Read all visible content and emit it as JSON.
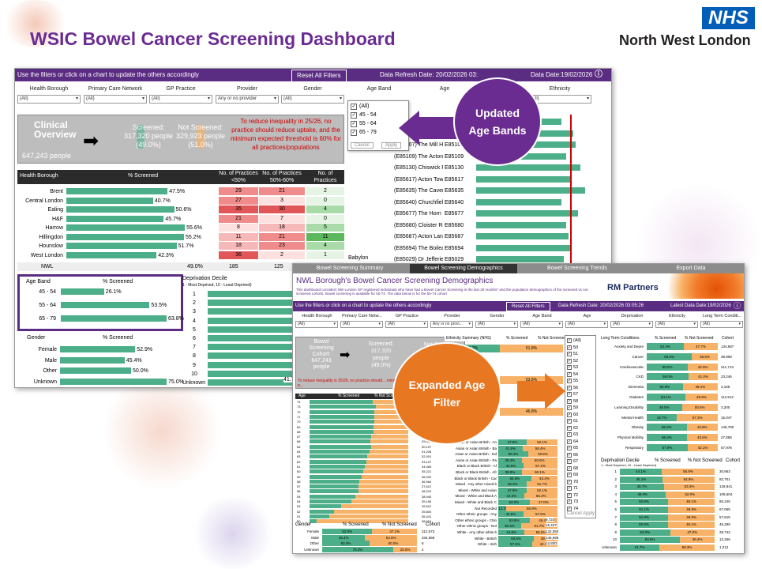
{
  "page": {
    "title": "WSIC Bowel Cancer Screening Dashboard",
    "logo": "NHS",
    "org": "North West London"
  },
  "overview": {
    "instruction": "Use the filters or click on a chart to update the others accordingly",
    "reset": "Reset All Filters",
    "refresh": "Data Refresh Date: 20/02/2026 03:",
    "latest": "Data Date:19/02/2026",
    "filters": [
      {
        "label": "Health Borough",
        "value": "(All)"
      },
      {
        "label": "Primary Care Network",
        "value": "(All)"
      },
      {
        "label": "GP Practice",
        "value": "(All)"
      },
      {
        "label": "Provider",
        "value": "Any or no provider"
      },
      {
        "label": "Gender",
        "value": "(All)"
      },
      {
        "label": "Age Band",
        "value": "(All)"
      },
      {
        "label": "Age",
        "value": ""
      },
      {
        "label": "Ethnicity",
        "value": "(All)"
      }
    ],
    "age_dropdown": {
      "options": [
        "(All)",
        "45 - 54",
        "55 - 64",
        "65 - 79"
      ],
      "cancel": "Cancel",
      "apply": "Apply"
    },
    "clinical": "Clinical Overview",
    "cohort_label": "Screening",
    "cohort": "647,243 people",
    "screened_label": "Screened:",
    "screened": "317,320 people",
    "screened_pct": "(49.0%)",
    "not_label": "Not Screened:",
    "not": "329,923 people",
    "not_pct": "(51.0%)",
    "note": "To reduce inequality in 25/26, no practice should reduce uptake, and the minimum expected threshold is 60% for all practices/populations",
    "borough_head": "Health Borough",
    "pct_head": "% Screened",
    "col_heads": [
      "No. of Practices <50%",
      "No. of Practices 50%-60%",
      "No. of Practices >60%"
    ],
    "boroughs": [
      {
        "name": "Brent",
        "pct": 47.5,
        "label": "47.5%",
        "a": "29",
        "b": "21",
        "c": "2"
      },
      {
        "name": "Central London",
        "pct": 40.7,
        "label": "40.7%",
        "a": "27",
        "b": "3",
        "c": "0"
      },
      {
        "name": "Ealing",
        "pct": 50.6,
        "label": "50.6%",
        "a": "35",
        "b": "30",
        "c": "4"
      },
      {
        "name": "H&F",
        "pct": 45.7,
        "label": "45.7%",
        "a": "21",
        "b": "7",
        "c": "0"
      },
      {
        "name": "Harrow",
        "pct": 55.6,
        "label": "55.6%",
        "a": "8",
        "b": "18",
        "c": "5"
      },
      {
        "name": "Hillingdon",
        "pct": 55.2,
        "label": "55.2%",
        "a": "11",
        "b": "21",
        "c": "11"
      },
      {
        "name": "Hounslow",
        "pct": 51.7,
        "label": "51.7%",
        "a": "18",
        "b": "23",
        "c": "4"
      },
      {
        "name": "West London",
        "pct": 42.3,
        "label": "42.3%",
        "a": "36",
        "b": "2",
        "c": "1"
      }
    ],
    "nwl": {
      "name": "NWL",
      "label": "49.0%",
      "a": "185",
      "b": "125",
      "c": ""
    },
    "practices": [
      {
        "name": "(E85001) Jefferis...",
        "code": "E85001"
      },
      {
        "name": "(E85075) Chiswick F...",
        "code": "E85075"
      },
      {
        "name": "(E85107) The Mill Hil...",
        "code": "E85107"
      },
      {
        "name": "(E85109) The Acton ...",
        "code": "E85109"
      },
      {
        "name": "(E85130) Chiswick F...",
        "code": "E85130"
      },
      {
        "name": "(E85617) Acton Tow...",
        "code": "E85617"
      },
      {
        "name": "(E85635) The Cavend...",
        "code": "E85635"
      },
      {
        "name": "(E85640) Churchfiel...",
        "code": "E85640"
      },
      {
        "name": "(E85677) The Horn L...",
        "code": "E85677"
      },
      {
        "name": "(E85680) Cloister Ro...",
        "code": "E85680"
      },
      {
        "name": "(E85687) Acton Lane...",
        "code": "E85687"
      },
      {
        "name": "(E85694) The Boilea...",
        "code": "E85694"
      },
      {
        "name": "(E85029) Dr Jefferie...",
        "code": "E85029"
      }
    ],
    "babylon": "Babylon",
    "age_head": "Age Band",
    "age_bands": [
      {
        "name": "45 - 54",
        "pct": 26.1,
        "label": "26.1%"
      },
      {
        "name": "55 - 64",
        "pct": 53.5,
        "label": "53.5%"
      },
      {
        "name": "65 - 79",
        "pct": 63.8,
        "label": "63.8%"
      }
    ],
    "gender_head": "Gender",
    "genders": [
      {
        "name": "Female",
        "pct": 52.9,
        "label": "52.9%"
      },
      {
        "name": "Male",
        "pct": 45.4,
        "label": "45.4%"
      },
      {
        "name": "Other",
        "pct": 50.0,
        "label": "50.0%"
      },
      {
        "name": "Unknown",
        "pct": 75.0,
        "label": "75.0%"
      }
    ],
    "dep_head": "Deprivation Decile",
    "dep_sub": "1 - Most Deprived, 10 - Least Deprived)",
    "deciles": [
      "1",
      "2",
      "3",
      "4",
      "5",
      "6",
      "7",
      "8",
      "9",
      "10",
      "Unknown"
    ],
    "unknown_val": "41.7"
  },
  "demo": {
    "tabs": [
      "Bowel Screening Summary",
      "Bowel Screening Demographics",
      "Bowel Screening Trends",
      "Export Data"
    ],
    "title": "NWL Borough's Bowel Cancer Screening Demographics",
    "subtitle": "This dashboard considers NW London GP registered individuals who have had a Bowel Cancer Screening in the last 30 months* and the population demographics of the screened vs not screened cohorts. Bowel screening is available for 50-74. The data below is for the 50-74 cohort",
    "rm": "RM Partners",
    "instruction": "Use the filters or click on a chart to update the others accordingly",
    "reset": "Reset All Filters",
    "refresh": "Data Refresh Date: 20/02/2026 03:05:26",
    "latest": "Latest Data Date:19/02/2026",
    "filters": [
      "Health Borough",
      "Primary Care Netw...",
      "GP Practice",
      "Provider",
      "Gender",
      "Age Band",
      "Age",
      "Deprivation",
      "Ethnicity",
      "Long Term Conditi..."
    ],
    "filter_vals": [
      "(All)",
      "(All)",
      "(All)",
      "Any or no provi...",
      "(All)",
      "(All)",
      "(All)",
      "(All)",
      "(All)",
      "(All)"
    ],
    "cohort_title": "Bowel Screening Cohort:",
    "cohort": "647,243 people",
    "screened": "Screened: 317,320 people (49.0%)",
    "not": "Not Sc",
    "note": "To reduce inequality in 25/26, no practice should... minimum expected threshold is 60% for all p...",
    "eth_head": "Ethnicity Summary (NHS)",
    "legend_s": "% Screened",
    "legend_n": "% Not Screened",
    "eth_top": [
      {
        "s": "46.2%",
        "n": "51.8%"
      },
      {
        "s": "",
        "n": "53.8%"
      },
      {
        "s": "",
        "n": "46.8%"
      }
    ],
    "eth_rows": [
      {
        "name": "Asian or Asian British - An",
        "s": "47.9%",
        "n": "52.1%"
      },
      {
        "name": "Asian or Asian British - Ba",
        "s": "41.6%",
        "n": "58.4%"
      },
      {
        "name": "Asian or Asian British - Ind",
        "s": "50.4%",
        "n": "49.6%"
      },
      {
        "name": "Asian or Asian British - Pa",
        "s": "39.4%",
        "n": "60.6%"
      },
      {
        "name": "Black or Black British - Af",
        "s": "42.8%",
        "n": "57.2%"
      },
      {
        "name": "Black or Black British - Afr",
        "s": "39.9%",
        "n": "60.1%"
      },
      {
        "name": "Black or Black British - Car",
        "s": "55.6%",
        "n": "44.4%"
      },
      {
        "name": "Mixed - Any other mixed b",
        "s": "48.3%",
        "n": "51.7%"
      },
      {
        "name": "Mixed - White and Asian",
        "s": "47.9%",
        "n": "52.1%"
      },
      {
        "name": "Mixed - White and Black A",
        "s": "44.6%",
        "n": "55.4%"
      },
      {
        "name": "Mixed - White and Black C",
        "s": "53.0%",
        "n": "47.0%"
      },
      {
        "name": "Not Recorded",
        "s": "13.1%",
        "n": "86.9%"
      },
      {
        "name": "Other ethnic groups - Any",
        "s": "42.5%",
        "n": "57.5%"
      },
      {
        "name": "Other ethnic groups - Chin",
        "s": "53.6%",
        "n": "46.4%"
      },
      {
        "name": "Other ethnic groups - Not",
        "s": "38.3%",
        "n": "61.7%"
      },
      {
        "name": "White - Any other white b",
        "s": "44.5%",
        "n": "55.5%"
      },
      {
        "name": "White - British",
        "s": "60.5%",
        "n": "39.5%"
      },
      {
        "name": "White - Irish",
        "s": "57.5%",
        "n": "42.5%"
      }
    ],
    "eth_cohort": [
      "",
      "",
      "",
      "",
      "",
      "",
      "",
      "",
      "",
      "",
      "",
      "9,724",
      "16,427",
      "132,050",
      "145,696",
      "12,830"
    ],
    "age_list": [
      "(All)",
      "50",
      "51",
      "52",
      "53",
      "54",
      "55",
      "56",
      "57",
      "58",
      "59",
      "60",
      "61",
      "62",
      "63",
      "64",
      "65",
      "66",
      "67",
      "68",
      "69",
      "70",
      "71",
      "72",
      "73",
      "74"
    ],
    "age_cancel": "Cancel",
    "age_apply": "Apply",
    "ltc_head": "Long Term Conditions",
    "ltc": [
      {
        "name": "Anxiety and Depre",
        "s": "52.3%",
        "n": "47.7%",
        "c": "134,687"
      },
      {
        "name": "Cancer",
        "s": "63.5%",
        "n": "36.5%",
        "c": "38,908"
      },
      {
        "name": "Cardiovascular",
        "s": "58.0%",
        "n": "42.0%",
        "c": "211,713"
      },
      {
        "name": "CKD",
        "s": "59.0%",
        "n": "41.0%",
        "c": "23,246"
      },
      {
        "name": "Dementia",
        "s": "50.9%",
        "n": "49.1%",
        "c": "3,169"
      },
      {
        "name": "Diabetes",
        "s": "54.1%",
        "n": "45.9%",
        "c": "112,512"
      },
      {
        "name": "Learning Disability",
        "s": "49.5%",
        "n": "50.5%",
        "c": "3,200"
      },
      {
        "name": "Mental Health",
        "s": "42.7%",
        "n": "57.3%",
        "c": "15,047"
      },
      {
        "name": "Obesity",
        "s": "56.2%",
        "n": "43.8%",
        "c": "146,790"
      },
      {
        "name": "Physical Mobility",
        "s": "56.4%",
        "n": "43.6%",
        "c": "27,858"
      },
      {
        "name": "Respiratory",
        "s": "57.9%",
        "n": "42.1%",
        "c": "57,978"
      }
    ],
    "dep_head": "Deprivation Decile",
    "dep_sub": "1 - Most Deprived, 10 - Least Deprived)",
    "cohort_head": "Cohort",
    "dep": [
      {
        "d": "1",
        "s": "44.1%",
        "n": "55.9%",
        "c": "30,663"
      },
      {
        "d": "2",
        "s": "45.1%",
        "n": "54.9%",
        "c": "82,701"
      },
      {
        "d": "3",
        "s": "46.7%",
        "n": "53.3%",
        "c": "126,841"
      },
      {
        "d": "4",
        "s": "48.0%",
        "n": "52.0%",
        "c": "105,604"
      },
      {
        "d": "5",
        "s": "50.9%",
        "n": "49.1%",
        "c": "80,245"
      },
      {
        "d": "6",
        "s": "51.1%",
        "n": "48.9%",
        "c": "67,065"
      },
      {
        "d": "7",
        "s": "51.0%",
        "n": "49.0%",
        "c": "57,615"
      },
      {
        "d": "8",
        "s": "50.9%",
        "n": "49.1%",
        "c": "46,299"
      },
      {
        "d": "9",
        "s": "53.0%",
        "n": "47.0%",
        "c": "29,742"
      },
      {
        "d": "10",
        "s": "63.6%",
        "n": "36.4%",
        "c": "13,256"
      },
      {
        "d": "Unknown",
        "s": "41.7%",
        "n": "58.3%",
        "c": "1,212"
      }
    ],
    "age_table_head": [
      "Age",
      "% Screened",
      "% Not Screened"
    ],
    "ages": [
      {
        "a": "74",
        "s": 63.6
      },
      {
        "a": "73",
        "s": 66.8
      },
      {
        "a": "72",
        "s": 65.4
      },
      {
        "a": "71",
        "s": 65.2
      },
      {
        "a": "70",
        "s": 65.2
      },
      {
        "a": "69",
        "s": 64.6
      },
      {
        "a": "68",
        "s": 64.4
      },
      {
        "a": "67",
        "s": 62.2
      },
      {
        "a": "66",
        "s": 61.4
      },
      {
        "a": "65",
        "s": 62.1
      },
      {
        "a": "64",
        "s": 60.7
      },
      {
        "a": "63",
        "s": 58.6
      },
      {
        "a": "62",
        "s": 57.9
      },
      {
        "a": "61",
        "s": 56.2
      },
      {
        "a": "60",
        "s": 54.3
      },
      {
        "a": "59",
        "s": 52.8
      },
      {
        "a": "58",
        "s": 50.4
      },
      {
        "a": "57",
        "s": 49.6
      },
      {
        "a": "56",
        "s": 49.4
      },
      {
        "a": "55",
        "s": 46.4
      },
      {
        "a": "54",
        "s": 42.2
      },
      {
        "a": "53",
        "s": 32.1
      },
      {
        "a": "52",
        "s": 24.9
      },
      {
        "a": "51",
        "s": 19.8
      },
      {
        "a": "50",
        "s": 7.3
      }
    ],
    "age_cohort": [
      "22,451",
      "23,165",
      "24,054",
      "25,024",
      "25,715",
      "26,301",
      "27,180",
      "28,119",
      "29,023",
      "30,197",
      "31,208",
      "32,001",
      "33,197",
      "34,083",
      "35,221",
      "36,020",
      "36,964",
      "37,612",
      "38,210",
      "38,940",
      "39,180",
      "39,512",
      "39,800",
      "36,441",
      "38,016"
    ],
    "gender_head": "Gender",
    "cohort_h": "Cohort",
    "genders": [
      {
        "name": "Female",
        "s": "52.9%",
        "n": "47.1%",
        "c": "312,573"
      },
      {
        "name": "Male",
        "s": "45.4%",
        "n": "54.6%",
        "c": "334,658"
      },
      {
        "name": "Other",
        "s": "50.0%",
        "n": "50.0%",
        "c": "8"
      },
      {
        "name": "Unknown",
        "s": "75.0%",
        "n": "25.0%",
        "c": "4"
      }
    ]
  },
  "callouts": {
    "updated": "Updated Age Bands",
    "expanded": "Expanded Age Filter"
  },
  "colors": {
    "purple": "#6b2c91",
    "green": "#4daf8a",
    "orange": "#f7b267",
    "callout_purple": "#6a2c91",
    "callout_orange": "#e87722"
  }
}
